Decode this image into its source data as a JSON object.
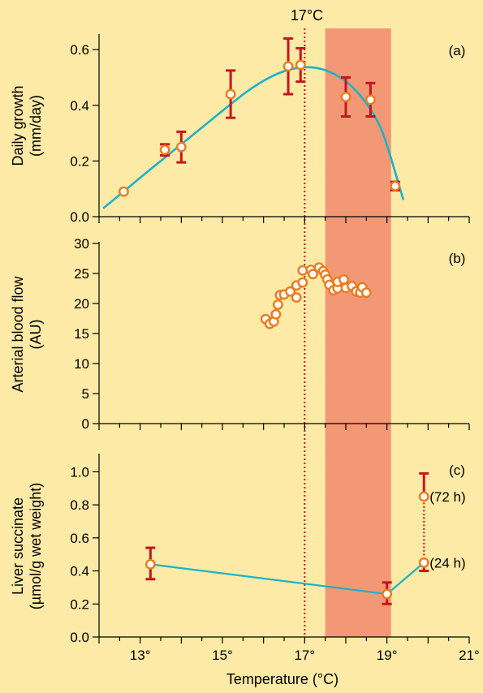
{
  "figure": {
    "reference_label": "17°C",
    "xlabel": "Temperature (°C)",
    "x_ticks": [
      13,
      15,
      17,
      19,
      21
    ],
    "x_tick_labels": [
      "13°",
      "15°",
      "17°",
      "19°",
      "21°"
    ],
    "colors": {
      "background": "#fdeaa6",
      "fit_line": "#1ab3c8",
      "error_bar": "#c8141e",
      "marker_edge": "#ec7a1c",
      "marker_fill": "#ffffff",
      "band": "#f08a6c",
      "reference_line": "#c8141e"
    }
  },
  "chart_data": [
    {
      "type": "scatter",
      "panel_label": "(a)",
      "ylabel": [
        "Daily growth",
        "(mm/day)"
      ],
      "xlim": [
        12,
        21
      ],
      "ylim": [
        0,
        0.65
      ],
      "yticks": [
        0.0,
        0.2,
        0.4,
        0.6
      ],
      "ytick_labels": [
        "0.0",
        "0.2",
        "0.4",
        "0.6"
      ],
      "shaded_band_x": [
        17.5,
        19.1
      ],
      "reference_x": 17.0,
      "points": [
        {
          "x": 12.6,
          "y": 0.09,
          "err": 0
        },
        {
          "x": 13.6,
          "y": 0.24,
          "err": 0.02
        },
        {
          "x": 14.0,
          "y": 0.25,
          "err": 0.055
        },
        {
          "x": 15.2,
          "y": 0.44,
          "err": 0.085
        },
        {
          "x": 16.6,
          "y": 0.54,
          "err": 0.1
        },
        {
          "x": 16.9,
          "y": 0.545,
          "err": 0.06
        },
        {
          "x": 18.0,
          "y": 0.43,
          "err": 0.07
        },
        {
          "x": 18.6,
          "y": 0.42,
          "err": 0.06
        },
        {
          "x": 19.2,
          "y": 0.11,
          "err": 0.015
        }
      ],
      "fit_curve": {
        "x": [
          12.1,
          12.6,
          13.0,
          13.5,
          14.0,
          14.5,
          15.0,
          15.5,
          16.0,
          16.5,
          17.0,
          17.5,
          18.0,
          18.4,
          18.8,
          19.0,
          19.2,
          19.4
        ],
        "y": [
          0.03,
          0.09,
          0.14,
          0.2,
          0.26,
          0.32,
          0.38,
          0.44,
          0.49,
          0.525,
          0.54,
          0.53,
          0.49,
          0.43,
          0.34,
          0.26,
          0.16,
          0.06
        ]
      }
    },
    {
      "type": "scatter",
      "panel_label": "(b)",
      "ylabel": [
        "Arterial blood flow",
        "(AU)"
      ],
      "xlim": [
        12,
        21
      ],
      "ylim": [
        0,
        30
      ],
      "yticks": [
        0,
        5,
        10,
        15,
        20,
        25,
        30
      ],
      "ytick_labels": [
        "0",
        "5",
        "10",
        "15",
        "20",
        "25",
        "30"
      ],
      "shaded_band_x": [
        17.5,
        19.1
      ],
      "reference_x": 17.0,
      "points": [
        {
          "x": 16.05,
          "y": 17.4
        },
        {
          "x": 16.15,
          "y": 16.6
        },
        {
          "x": 16.25,
          "y": 17.0
        },
        {
          "x": 16.3,
          "y": 18.2
        },
        {
          "x": 16.35,
          "y": 19.8
        },
        {
          "x": 16.4,
          "y": 21.4
        },
        {
          "x": 16.5,
          "y": 21.5
        },
        {
          "x": 16.65,
          "y": 22.0
        },
        {
          "x": 16.8,
          "y": 21.0
        },
        {
          "x": 16.8,
          "y": 23.0
        },
        {
          "x": 16.95,
          "y": 23.5
        },
        {
          "x": 16.95,
          "y": 25.5
        },
        {
          "x": 17.15,
          "y": 25.6
        },
        {
          "x": 17.2,
          "y": 24.9
        },
        {
          "x": 17.35,
          "y": 26.0
        },
        {
          "x": 17.45,
          "y": 25.4
        },
        {
          "x": 17.5,
          "y": 24.8
        },
        {
          "x": 17.55,
          "y": 24.0
        },
        {
          "x": 17.6,
          "y": 23.1
        },
        {
          "x": 17.7,
          "y": 22.2
        },
        {
          "x": 17.8,
          "y": 22.5
        },
        {
          "x": 17.8,
          "y": 23.6
        },
        {
          "x": 17.95,
          "y": 24.0
        },
        {
          "x": 18.0,
          "y": 22.6
        },
        {
          "x": 18.15,
          "y": 22.9
        },
        {
          "x": 18.25,
          "y": 22.0
        },
        {
          "x": 18.35,
          "y": 21.8
        },
        {
          "x": 18.4,
          "y": 22.7
        },
        {
          "x": 18.5,
          "y": 21.8
        }
      ]
    },
    {
      "type": "scatter",
      "panel_label": "(c)",
      "ylabel": [
        "Liver succinate",
        "(µmol/g wet weight)"
      ],
      "xlim": [
        12,
        21
      ],
      "ylim": [
        0,
        1.1
      ],
      "yticks": [
        0.0,
        0.2,
        0.4,
        0.6,
        0.8,
        1.0
      ],
      "ytick_labels": [
        "0.0",
        "0.2",
        "0.4",
        "0.6",
        "0.8",
        "1.0"
      ],
      "shaded_band_x": [
        17.5,
        19.1
      ],
      "reference_x": 17.0,
      "points": [
        {
          "x": 13.25,
          "y": 0.44,
          "err_up": 0.1,
          "err_down": 0.09
        },
        {
          "x": 19.0,
          "y": 0.26,
          "err_up": 0.07,
          "err_down": 0.06
        },
        {
          "x": 19.9,
          "y": 0.45,
          "err_up": 0,
          "err_down": 0.05,
          "label": "(24 h)"
        },
        {
          "x": 19.9,
          "y": 0.85,
          "err_up": 0.14,
          "err_down": 0,
          "label": "(72 h)"
        }
      ],
      "connecting_line": {
        "x": [
          13.25,
          19.0,
          19.9
        ],
        "y": [
          0.44,
          0.26,
          0.45
        ]
      }
    }
  ]
}
